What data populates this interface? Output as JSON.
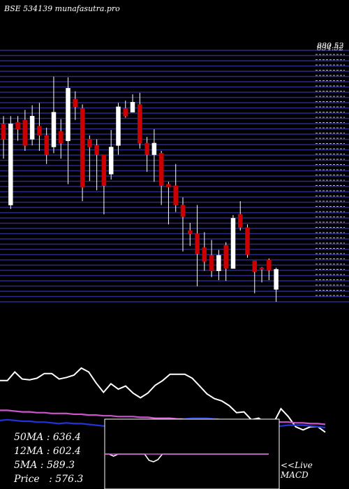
{
  "header": {
    "title": "BSE 534139 munafasutra.pro",
    "top_price_label": "880.52",
    "top_price_label_overlap": "834.52"
  },
  "colors": {
    "background": "#000000",
    "grid_line": "#2b2b8a",
    "bull": "#ffffff",
    "bear": "#cc0000",
    "wick": "#ffffff",
    "price_line": "#ffffff",
    "ma_line": "#cc55cc",
    "ma_fast": "#2233dd",
    "text": "#ffffff"
  },
  "stats": {
    "ma50": "50MA : 636.4",
    "ma12": "12MA : 602.4",
    "ma5": "5MA : 589.3",
    "price": "Price   : 576.3"
  },
  "labels": {
    "live": "<<Live",
    "macd": "MACD"
  },
  "chart_data": [
    {
      "type": "candlestick",
      "title": "BSE 534139 munafasutra.pro",
      "ylim": [
        560,
        885
      ],
      "grid": true,
      "y_tick_labels_visible": [
        "880.52",
        "834.52"
      ],
      "candles": [
        {
          "open": 790,
          "close": 770,
          "high": 800,
          "low": 745
        },
        {
          "open": 685,
          "close": 790,
          "high": 800,
          "low": 680
        },
        {
          "open": 792,
          "close": 783,
          "high": 800,
          "low": 768
        },
        {
          "open": 795,
          "close": 762,
          "high": 808,
          "low": 755
        },
        {
          "open": 770,
          "close": 800,
          "high": 814,
          "low": 762
        },
        {
          "open": 787,
          "close": 775,
          "high": 817,
          "low": 755
        },
        {
          "open": 775,
          "close": 750,
          "high": 785,
          "low": 738
        },
        {
          "open": 760,
          "close": 805,
          "high": 851,
          "low": 752
        },
        {
          "open": 780,
          "close": 765,
          "high": 796,
          "low": 745
        },
        {
          "open": 768,
          "close": 836,
          "high": 850,
          "low": 712
        },
        {
          "open": 822,
          "close": 812,
          "high": 832,
          "low": 795
        },
        {
          "open": 810,
          "close": 708,
          "high": 815,
          "low": 690
        },
        {
          "open": 770,
          "close": 760,
          "high": 775,
          "low": 716
        },
        {
          "open": 762,
          "close": 750,
          "high": 770,
          "low": 704
        },
        {
          "open": 750,
          "close": 710,
          "high": 750,
          "low": 673
        },
        {
          "open": 725,
          "close": 760,
          "high": 782,
          "low": 718
        },
        {
          "open": 762,
          "close": 812,
          "high": 817,
          "low": 750
        },
        {
          "open": 810,
          "close": 800,
          "high": 820,
          "low": 798
        },
        {
          "open": 805,
          "close": 818,
          "high": 828,
          "low": 805
        },
        {
          "open": 815,
          "close": 765,
          "high": 830,
          "low": 758
        },
        {
          "open": 765,
          "close": 750,
          "high": 773,
          "low": 728
        },
        {
          "open": 750,
          "close": 765,
          "high": 783,
          "low": 715
        },
        {
          "open": 752,
          "close": 710,
          "high": 755,
          "low": 685
        },
        {
          "open": 712,
          "close": 708,
          "high": 715,
          "low": 660
        },
        {
          "open": 710,
          "close": 685,
          "high": 738,
          "low": 676
        },
        {
          "open": 685,
          "close": 670,
          "high": 695,
          "low": 625
        },
        {
          "open": 652,
          "close": 648,
          "high": 662,
          "low": 632
        },
        {
          "open": 648,
          "close": 622,
          "high": 685,
          "low": 580
        },
        {
          "open": 630,
          "close": 612,
          "high": 650,
          "low": 600
        },
        {
          "open": 620,
          "close": 600,
          "high": 640,
          "low": 592
        },
        {
          "open": 600,
          "close": 620,
          "high": 627,
          "low": 588
        },
        {
          "open": 633,
          "close": 603,
          "high": 637,
          "low": 587
        },
        {
          "open": 603,
          "close": 668,
          "high": 672,
          "low": 603
        },
        {
          "open": 673,
          "close": 656,
          "high": 690,
          "low": 652
        },
        {
          "open": 656,
          "close": 621,
          "high": 660,
          "low": 617
        },
        {
          "open": 613,
          "close": 599,
          "high": 613,
          "low": 571
        },
        {
          "open": 604,
          "close": 602,
          "high": 605,
          "low": 585
        },
        {
          "open": 614,
          "close": 601,
          "high": 616,
          "low": 588
        },
        {
          "open": 576,
          "close": 602,
          "high": 604,
          "low": 560
        }
      ]
    },
    {
      "type": "line",
      "title": "",
      "ylim": [
        0,
        100
      ],
      "series": [
        {
          "color": "#ffffff",
          "values": [
            60,
            60,
            71,
            62,
            61,
            63,
            69,
            69,
            62,
            64,
            67,
            76,
            71,
            57,
            45,
            56,
            49,
            53,
            44,
            38,
            44,
            54,
            60,
            68,
            68,
            68,
            63,
            53,
            43,
            37,
            34,
            28,
            19,
            20,
            10,
            12,
            5,
            6,
            24,
            14,
            1,
            -3,
            1,
            1,
            -6
          ]
        },
        {
          "color": "#cc55cc",
          "values": [
            22,
            22,
            21,
            20,
            20,
            19,
            19,
            18,
            18,
            18,
            17,
            17,
            16,
            16,
            15,
            15,
            14,
            14,
            14,
            13,
            13,
            12,
            12,
            12,
            11,
            11,
            11,
            11,
            11,
            11,
            10,
            10,
            10,
            9,
            9,
            8,
            8,
            8,
            7,
            7,
            6,
            6,
            5,
            5,
            4
          ]
        },
        {
          "color": "#2233dd",
          "values": [
            9,
            10,
            9,
            8,
            8,
            7,
            7,
            6,
            5,
            6,
            5,
            5,
            4,
            3,
            2,
            2,
            1,
            0,
            -1,
            -1,
            0,
            2,
            5,
            7,
            9,
            11,
            12,
            12,
            12,
            11,
            9,
            7,
            5,
            3,
            1,
            1,
            1,
            1,
            2,
            3,
            3,
            3,
            2,
            1,
            0
          ]
        }
      ]
    },
    {
      "type": "line",
      "title": "MACD",
      "ylim": [
        -50,
        50
      ],
      "series": [
        {
          "color": "#ffffff",
          "values": [
            0,
            0,
            -3,
            0,
            0,
            0,
            0,
            0,
            0,
            0,
            -9,
            -11,
            -8,
            0,
            0,
            0,
            0,
            0,
            0,
            0,
            0,
            0,
            0,
            0,
            0,
            0,
            0,
            0,
            0,
            0,
            0,
            0,
            0,
            0,
            0,
            0,
            0,
            0
          ]
        },
        {
          "color": "#cc55cc",
          "values": [
            0,
            0,
            0,
            0,
            0,
            0,
            0,
            0,
            0,
            0,
            0,
            0,
            0,
            0,
            0,
            0,
            0,
            0,
            0,
            0,
            0,
            0,
            0,
            0,
            0,
            0,
            0,
            0,
            0,
            0,
            0,
            0,
            0,
            0,
            0,
            0,
            0,
            0
          ]
        }
      ]
    }
  ]
}
